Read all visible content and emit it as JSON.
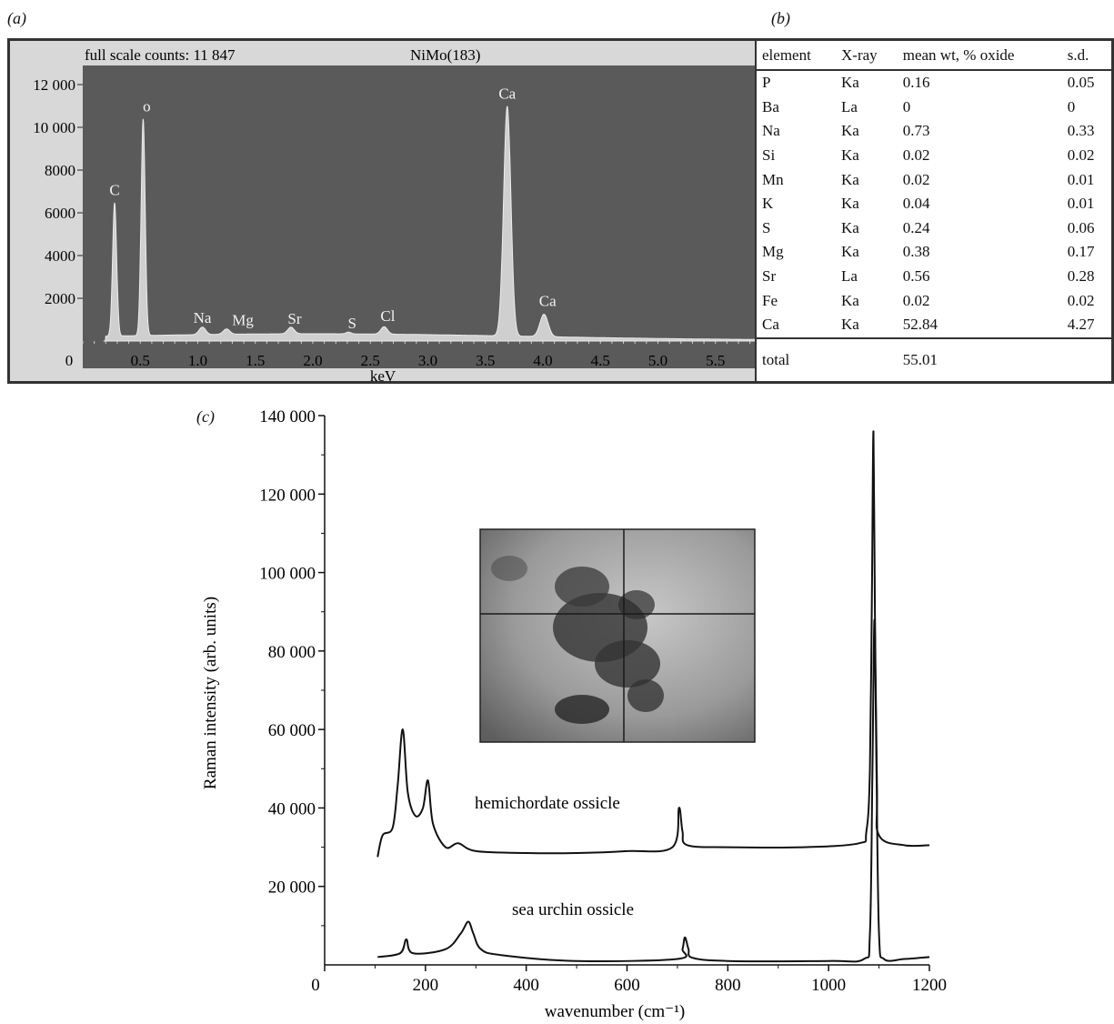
{
  "labels": {
    "a": "(a)",
    "b": "(b)",
    "c": "(c)"
  },
  "panel_a": {
    "header_left": "full scale counts: 11 847",
    "header_right": "NiMo(183)"
  },
  "panel_b": {
    "headers": [
      "element",
      "X-ray",
      "mean wt, % oxide",
      "s.d."
    ],
    "rows": [
      [
        "P",
        "Ka",
        "0.16",
        "0.05"
      ],
      [
        "Ba",
        "La",
        "0",
        "0"
      ],
      [
        "Na",
        "Ka",
        "0.73",
        "0.33"
      ],
      [
        "Si",
        "Ka",
        "0.02",
        "0.02"
      ],
      [
        "Mn",
        "Ka",
        "0.02",
        "0.01"
      ],
      [
        "K",
        "Ka",
        "0.04",
        "0.01"
      ],
      [
        "S",
        "Ka",
        "0.24",
        "0.06"
      ],
      [
        "Mg",
        "Ka",
        "0.38",
        "0.17"
      ],
      [
        "Sr",
        "La",
        "0.56",
        "0.28"
      ],
      [
        "Fe",
        "Ka",
        "0.02",
        "0.02"
      ],
      [
        "Ca",
        "Ka",
        "52.84",
        "4.27"
      ]
    ],
    "total": [
      "total",
      "",
      "55.01",
      ""
    ]
  },
  "chart_data": [
    {
      "type": "area",
      "xlabel": "keV",
      "ylabel": "",
      "xlim": [
        0,
        5.85
      ],
      "ylim": [
        0,
        12000
      ],
      "x_ticks": [
        "0",
        "0.5",
        "1.0",
        "1.5",
        "2.0",
        "2.5",
        "3.0",
        "3.5",
        "4.0",
        "4.5",
        "5.0",
        "5.5"
      ],
      "x_tick_values": [
        0,
        0.5,
        1.0,
        1.5,
        2.0,
        2.5,
        3.0,
        3.5,
        4.0,
        4.5,
        5.0,
        5.5
      ],
      "y_ticks": [
        "2000",
        "4000",
        "6000",
        "8000",
        "10 000",
        "12 000"
      ],
      "y_tick_values": [
        2000,
        4000,
        6000,
        8000,
        10000,
        12000
      ],
      "baseline": 300,
      "peaks": [
        {
          "label": "C",
          "x": 0.277,
          "y": 6500
        },
        {
          "label": "o",
          "x": 0.525,
          "y": 10400
        },
        {
          "label": "Na",
          "x": 1.04,
          "y": 600
        },
        {
          "label": "Mg",
          "x": 1.25,
          "y": 500
        },
        {
          "label": "Sr",
          "x": 1.81,
          "y": 560
        },
        {
          "label": "S",
          "x": 2.31,
          "y": 330
        },
        {
          "label": "Cl",
          "x": 2.62,
          "y": 600
        },
        {
          "label": "Ca",
          "x": 3.69,
          "y": 11000
        },
        {
          "label": "Ca",
          "x": 4.01,
          "y": 1300
        }
      ],
      "colors": {
        "background": "#5a5a5a",
        "trace": "#e6e6e6"
      }
    },
    {
      "type": "line",
      "xlabel": "wavenumber (cm⁻¹)",
      "ylabel": "Raman intensity (arb. units)",
      "xlim": [
        0,
        1200
      ],
      "ylim": [
        0,
        140000
      ],
      "x_ticks": [
        "0",
        "200",
        "400",
        "600",
        "800",
        "1000",
        "1200"
      ],
      "x_tick_values": [
        0,
        200,
        400,
        600,
        800,
        1000,
        1200
      ],
      "y_ticks": [
        "20 000",
        "40 000",
        "60 000",
        "80 000",
        "100 000",
        "120 000",
        "140 000"
      ],
      "y_tick_values": [
        20000,
        40000,
        60000,
        80000,
        100000,
        120000,
        140000
      ],
      "series": [
        {
          "name": "hemichordate ossicle",
          "x": [
            105,
            115,
            135,
            145,
            155,
            165,
            180,
            195,
            205,
            215,
            240,
            265,
            300,
            400,
            500,
            600,
            690,
            703,
            710,
            720,
            800,
            950,
            1060,
            1075,
            1082,
            1086,
            1089,
            1092,
            1096,
            1100,
            1150,
            1200
          ],
          "y": [
            27500,
            33000,
            35000,
            46000,
            60000,
            44000,
            38000,
            40000,
            47000,
            36000,
            30000,
            31000,
            29000,
            28500,
            28500,
            29000,
            30000,
            40000,
            34000,
            30500,
            30000,
            30000,
            31000,
            34000,
            50000,
            95000,
            136000,
            90000,
            45000,
            33000,
            30500,
            30500
          ]
        },
        {
          "name": "sea urchin ossicle",
          "x": [
            105,
            150,
            162,
            175,
            240,
            270,
            285,
            295,
            310,
            350,
            500,
            700,
            710,
            715,
            722,
            730,
            800,
            1000,
            1070,
            1082,
            1087,
            1091,
            1095,
            1100,
            1110,
            1150,
            1200
          ],
          "y": [
            2000,
            3000,
            6500,
            3000,
            4000,
            8000,
            11000,
            8000,
            4000,
            2500,
            1000,
            1500,
            4000,
            7000,
            4000,
            1800,
            1000,
            1000,
            1500,
            8000,
            50000,
            88000,
            50000,
            8000,
            1500,
            1500,
            2000
          ]
        }
      ],
      "annotations": [
        "hemichordate ossicle",
        "sea urchin ossicle"
      ],
      "inset": "micrograph with crosshair"
    }
  ]
}
